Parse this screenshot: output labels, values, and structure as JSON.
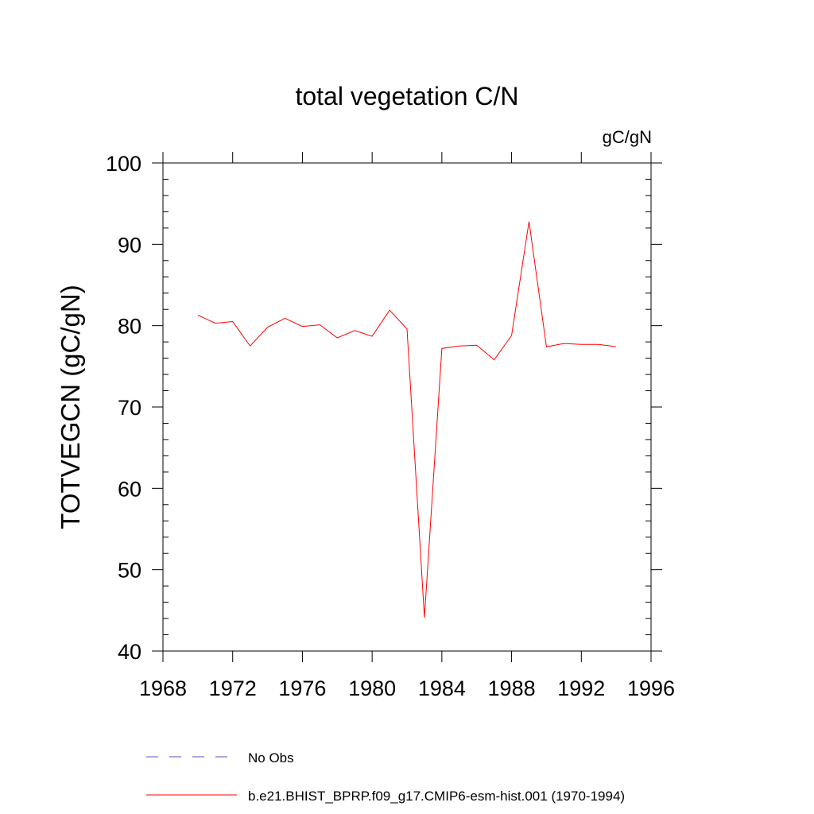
{
  "chart_data": {
    "type": "line",
    "title": "total vegetation C/N",
    "units_label": "gC/gN",
    "ylabel": "TOTVEGCN  (gC/gN)",
    "xlabel": "",
    "xlim": [
      1968,
      1996
    ],
    "ylim": [
      40,
      100
    ],
    "x_ticks": [
      1968,
      1972,
      1976,
      1980,
      1984,
      1988,
      1992,
      1996
    ],
    "y_ticks": [
      40,
      50,
      60,
      70,
      80,
      90,
      100
    ],
    "grid": false,
    "legend_position": "bottom-left",
    "series": [
      {
        "name": "No Obs",
        "color": "#5050c0",
        "style": "dashed",
        "x": [],
        "values": []
      },
      {
        "name": "b.e21.BHIST_BPRP.f09_g17.CMIP6-esm-hist.001 (1970-1994)",
        "color": "#ff0000",
        "style": "solid",
        "x": [
          1970,
          1971,
          1972,
          1973,
          1974,
          1975,
          1976,
          1977,
          1978,
          1979,
          1980,
          1981,
          1982,
          1983,
          1984,
          1985,
          1986,
          1987,
          1988,
          1989,
          1990,
          1991,
          1992,
          1993,
          1994
        ],
        "values": [
          81.3,
          80.3,
          80.5,
          77.5,
          79.8,
          80.9,
          79.9,
          80.1,
          78.5,
          79.4,
          78.7,
          81.9,
          79.6,
          44.1,
          77.2,
          77.5,
          77.6,
          75.8,
          78.8,
          92.8,
          77.4,
          77.8,
          77.7,
          77.7,
          77.4
        ]
      }
    ]
  }
}
